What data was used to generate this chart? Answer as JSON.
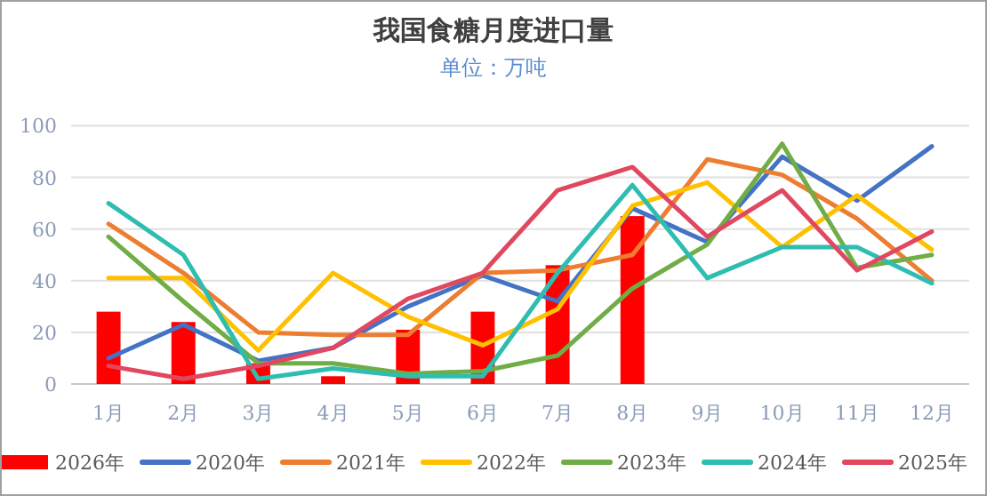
{
  "chart_data": {
    "type": "line",
    "title": "我国食糖月度进口量",
    "subtitle": "单位：万吨",
    "categories": [
      "1月",
      "2月",
      "3月",
      "4月",
      "5月",
      "6月",
      "7月",
      "8月",
      "9月",
      "10月",
      "11月",
      "12月"
    ],
    "ylim": [
      0,
      100
    ],
    "yticks": [
      0,
      20,
      40,
      60,
      80,
      100
    ],
    "grid": "y",
    "legend": "bottom",
    "series": [
      {
        "name": "2026年",
        "type": "bar",
        "color": "#ff0000",
        "values": [
          28,
          24,
          8,
          3,
          21,
          28,
          46,
          65,
          null,
          null,
          null,
          null
        ]
      },
      {
        "name": "2020年",
        "color": "#4472c4",
        "values": [
          10,
          23,
          9,
          14,
          30,
          42,
          32,
          68,
          55,
          88,
          71,
          92
        ]
      },
      {
        "name": "2021年",
        "color": "#ed7d31",
        "values": [
          62,
          43,
          20,
          19,
          19,
          43,
          44,
          50,
          87,
          81,
          64,
          40
        ]
      },
      {
        "name": "2022年",
        "color": "#ffc000",
        "values": [
          41,
          41,
          13,
          43,
          26,
          15,
          29,
          69,
          78,
          53,
          73,
          52
        ]
      },
      {
        "name": "2023年",
        "color": "#70ad47",
        "values": [
          57,
          32,
          8,
          8,
          4,
          5,
          11,
          37,
          54,
          93,
          45,
          50
        ]
      },
      {
        "name": "2024年",
        "color": "#2ebdb0",
        "values": [
          70,
          50,
          2,
          6,
          3,
          3,
          43,
          77,
          41,
          53,
          53,
          39
        ]
      },
      {
        "name": "2025年",
        "color": "#e04860",
        "values": [
          7,
          2,
          7,
          14,
          33,
          43,
          75,
          84,
          57,
          75,
          44,
          59
        ]
      }
    ]
  }
}
